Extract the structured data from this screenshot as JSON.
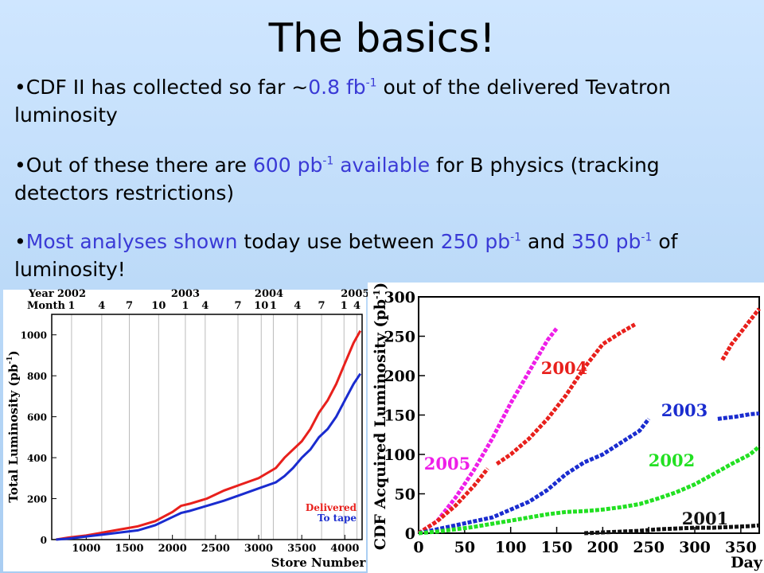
{
  "slide": {
    "title": "The basics!",
    "bullets": [
      {
        "a": "•CDF II has collected so far  ~",
        "b": "0.8 fb",
        "bs": "-1",
        "c": " out of the delivered Tevatron luminosity"
      },
      {
        "a": "•Out of these there are ",
        "b": "600 pb",
        "bs": "-1",
        "b2": " available",
        "c": " for B physics (tracking detectors restrictions)"
      },
      {
        "a": "•",
        "b": "Most analyses shown",
        "c": " today use between ",
        "d": "250 pb",
        "ds": "-1",
        "e": " and ",
        "f": "350 pb",
        "fs": "-1",
        "g": " of luminosity!"
      }
    ]
  },
  "colors": {
    "accent": "#3a3ad6",
    "delivered": "#e8201c",
    "totape": "#1a2ccf",
    "y2005": "#ee1ee8",
    "y2004": "#e8201c",
    "y2003": "#1a2ccf",
    "y2002": "#22e022",
    "y2001": "#111111"
  },
  "chart_data": [
    {
      "type": "line",
      "ylabel": "Total Luminosity (pb-1)",
      "xlabel": "Store Number",
      "xlim": [
        600,
        4200
      ],
      "ylim": [
        0,
        1100
      ],
      "xticks": [
        1000,
        1500,
        2000,
        2500,
        3000,
        3500,
        4000
      ],
      "yticks": [
        0,
        200,
        400,
        600,
        800,
        1000
      ],
      "top_axis": {
        "year_label": "Year",
        "month_label": "Month",
        "years": [
          {
            "text": "2002",
            "x": 830
          },
          {
            "text": "2003",
            "x": 2150
          },
          {
            "text": "2004",
            "x": 3120
          },
          {
            "text": "2005",
            "x": 4120
          }
        ],
        "months": [
          {
            "text": "1",
            "x": 830
          },
          {
            "text": "4",
            "x": 1180
          },
          {
            "text": "7",
            "x": 1500
          },
          {
            "text": "10",
            "x": 1840
          },
          {
            "text": "1",
            "x": 2150
          },
          {
            "text": "4",
            "x": 2380
          },
          {
            "text": "7",
            "x": 2760
          },
          {
            "text": "10",
            "x": 3030
          },
          {
            "text": "1",
            "x": 3170
          },
          {
            "text": "4",
            "x": 3450
          },
          {
            "text": "7",
            "x": 3730
          },
          {
            "text": "1",
            "x": 3990
          },
          {
            "text": "4",
            "x": 4140
          }
        ]
      },
      "legend": "bottom-right",
      "series": [
        {
          "name": "Delivered",
          "x": [
            650,
            800,
            1000,
            1200,
            1400,
            1600,
            1800,
            2000,
            2100,
            2200,
            2400,
            2600,
            2800,
            3000,
            3200,
            3300,
            3400,
            3500,
            3600,
            3700,
            3800,
            3900,
            4000,
            4100,
            4180
          ],
          "values": [
            0,
            10,
            20,
            35,
            50,
            65,
            90,
            135,
            165,
            175,
            200,
            240,
            270,
            300,
            350,
            400,
            440,
            480,
            540,
            620,
            680,
            760,
            860,
            960,
            1020
          ]
        },
        {
          "name": "To tape",
          "x": [
            650,
            800,
            1000,
            1200,
            1400,
            1600,
            1800,
            2000,
            2100,
            2200,
            2400,
            2600,
            2800,
            3000,
            3200,
            3300,
            3400,
            3500,
            3600,
            3700,
            3800,
            3900,
            4000,
            4100,
            4180
          ],
          "values": [
            0,
            5,
            15,
            25,
            35,
            45,
            70,
            110,
            130,
            140,
            165,
            190,
            220,
            250,
            280,
            310,
            350,
            400,
            440,
            500,
            540,
            600,
            680,
            760,
            810
          ]
        }
      ]
    },
    {
      "type": "scatter",
      "ylabel": "CDF Acquired Luminosity (pb-1)",
      "xlabel": "Day",
      "xlim": [
        0,
        370
      ],
      "ylim": [
        0,
        300
      ],
      "xticks": [
        0,
        50,
        100,
        150,
        200,
        250,
        300,
        350
      ],
      "yticks": [
        0,
        50,
        100,
        150,
        200,
        250,
        300
      ],
      "series": [
        {
          "name": "2005",
          "x": [
            0,
            20,
            40,
            60,
            80,
            100,
            120,
            140,
            150
          ],
          "values": [
            0,
            15,
            45,
            80,
            120,
            165,
            205,
            245,
            260
          ]
        },
        {
          "name": "2004",
          "x": [
            0,
            20,
            40,
            60,
            75,
            85,
            100,
            120,
            140,
            160,
            180,
            200,
            220,
            235,
            330,
            340,
            350,
            360,
            370
          ],
          "values": [
            0,
            15,
            35,
            60,
            82,
            88,
            100,
            120,
            145,
            175,
            210,
            240,
            255,
            265,
            220,
            240,
            255,
            270,
            285
          ]
        },
        {
          "name": "2003",
          "x": [
            0,
            20,
            40,
            60,
            80,
            100,
            120,
            140,
            160,
            180,
            200,
            220,
            240,
            250,
            325,
            345,
            360,
            370
          ],
          "values": [
            0,
            5,
            10,
            15,
            20,
            30,
            40,
            55,
            75,
            90,
            100,
            115,
            130,
            145,
            145,
            148,
            151,
            152
          ]
        },
        {
          "name": "2002",
          "x": [
            0,
            20,
            40,
            60,
            80,
            100,
            120,
            140,
            160,
            180,
            200,
            220,
            240,
            260,
            280,
            300,
            320,
            340,
            360,
            370
          ],
          "values": [
            0,
            2,
            5,
            8,
            12,
            16,
            20,
            24,
            27,
            28,
            30,
            33,
            37,
            44,
            52,
            62,
            75,
            88,
            100,
            110
          ]
        },
        {
          "name": "2001",
          "x": [
            180,
            200,
            220,
            240,
            260,
            280,
            300,
            320,
            340,
            360,
            370
          ],
          "values": [
            0,
            1,
            2,
            3,
            5,
            6,
            7,
            7,
            8,
            9,
            10
          ]
        }
      ]
    }
  ]
}
